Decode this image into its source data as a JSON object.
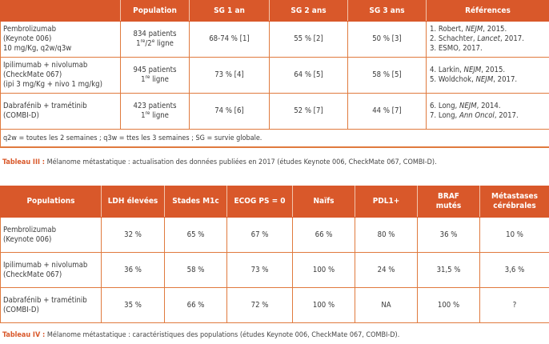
{
  "table1": {
    "headers": [
      "",
      "Population",
      "SG 1 an",
      "SG 2 ans",
      "SG 3 ans",
      "Références"
    ],
    "rows": [
      {
        "treatment": [
          "Pembrolizumab",
          "(Keynote 006)",
          "10 mg/Kg, q2w/q3w"
        ],
        "population_count": "834 patients",
        "population_line_num": "1",
        "population_line_sup": "re",
        "population_line_sep": "/2",
        "population_line_sup2": "e",
        "population_line_text": " ligne",
        "sg1": "68-74 % [1]",
        "sg2": "55 % [2]",
        "sg3": "50 % [3]",
        "refs": [
          {
            "pre": "1. Robert, ",
            "journal": "NEJM",
            "post": ", 2015."
          },
          {
            "pre": "2. Schachter, ",
            "journal": "Lancet",
            "post": ", 2017."
          },
          {
            "pre": "3. ESMO, 2017.",
            "journal": "",
            "post": ""
          }
        ]
      },
      {
        "treatment": [
          "Ipilimumab + nivolumab",
          "(CheckMate 067)",
          "(ipi 3 mg/Kg + nivo 1 mg/kg)"
        ],
        "population_count": "945 patients",
        "population_line_num": "1",
        "population_line_sup": "re",
        "population_line_text": " ligne",
        "sg1": "73 % [4]",
        "sg2": "64 % [5]",
        "sg3": "58 % [5]",
        "refs": [
          {
            "pre": "4. Larkin, ",
            "journal": "NEJM",
            "post": ", 2015."
          },
          {
            "pre": "5. Woldchok, ",
            "journal": "NEJM",
            "post": ", 2017."
          }
        ]
      },
      {
        "treatment": [
          "Dabrafénib + tramétinib",
          "(COMBI-D)"
        ],
        "population_count": "423 patients",
        "population_line_num": "1",
        "population_line_sup": "re",
        "population_line_text": " ligne",
        "sg1": "74 % [6]",
        "sg2": "52 % [7]",
        "sg3": "44 % [7]",
        "refs": [
          {
            "pre": "6. Long, ",
            "journal": "NEJM",
            "post": ", 2014."
          },
          {
            "pre": "7. Long, ",
            "journal": "Ann Oncol",
            "post": ", 2017."
          }
        ]
      }
    ],
    "footnote": "q2w = toutes les 2 semaines ; q3w = ttes les 3 semaines ; SG = survie globale."
  },
  "caption1": {
    "label": "Tableau III :",
    "text": " Mélanome métastatique : actualisation des données publiées en 2017 (études Keynote 006, CheckMate 067, COMBI-D)."
  },
  "table2": {
    "headers": [
      "Populations",
      "LDH élevées",
      "Stades M1c",
      "ECOG PS = 0",
      "Naïfs",
      "PDL1+",
      "BRAF mutés",
      "Métastases cérébrales"
    ],
    "header_lines": {
      "braf": [
        "BRAF",
        "mutés"
      ],
      "meta": [
        "Métastases",
        "cérébrales"
      ]
    },
    "rows": [
      {
        "treatment": [
          "Pembrolizumab",
          "(Keynote 006)"
        ],
        "values": [
          "32 %",
          "65 %",
          "67 %",
          "66 %",
          "80 %",
          "36 %",
          "10 %"
        ]
      },
      {
        "treatment": [
          "Ipilimumab + nivolumab",
          "(CheckMate 067)"
        ],
        "values": [
          "36 %",
          "58 %",
          "73 %",
          "100 %",
          "24 %",
          "31,5 %",
          "3,6 %"
        ]
      },
      {
        "treatment": [
          "Dabrafénib + tramétinib",
          "(COMBI-D)"
        ],
        "values": [
          "35 %",
          "66 %",
          "72 %",
          "100 %",
          "NA",
          "100 %",
          "?"
        ]
      }
    ]
  },
  "caption2": {
    "label": "Tableau IV :",
    "text": " Mélanome métastatique : caractéristiques des populations (études Keynote 006, CheckMate 067, COMBI-D)."
  },
  "colors": {
    "header_bg": "#d9582a",
    "border": "#e07a3e",
    "text": "#3a3a3a"
  }
}
